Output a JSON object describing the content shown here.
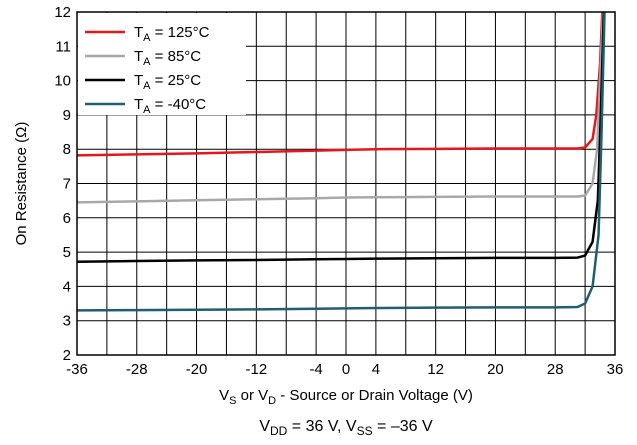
{
  "chart_data": {
    "type": "line",
    "xlabel": {
      "base": "V",
      "sub1": "S",
      "mid": " or V",
      "sub2": "D",
      "rest": " - Source or Drain Voltage (V)"
    },
    "ylabel": "On Resistance (Ω)",
    "caption": {
      "p1": "V",
      "s1": "DD",
      "p2": " = 36 V, V",
      "s2": "SS",
      "p3": " = –36 V"
    },
    "xlim": [
      -36,
      36
    ],
    "ylim": [
      2,
      12
    ],
    "xticks": [
      -36,
      -28,
      -20,
      -12,
      -4,
      0,
      4,
      12,
      20,
      28,
      36
    ],
    "xtick_labels": [
      "-36",
      "-28",
      "-20",
      "-12",
      "-4",
      "0",
      "4",
      "12",
      "20",
      "28",
      "36"
    ],
    "yticks": [
      2,
      3,
      4,
      5,
      6,
      7,
      8,
      9,
      10,
      11,
      12
    ],
    "ytick_labels": [
      "2",
      "3",
      "4",
      "5",
      "6",
      "7",
      "8",
      "9",
      "10",
      "11",
      "12"
    ],
    "grid": true,
    "legend_position": "top-left",
    "series": [
      {
        "name_prefix": "T",
        "name_sub": "A",
        "name_suffix": " = 125°C",
        "color": "#e8161a",
        "x": [
          -36,
          -28,
          -20,
          -12,
          -4,
          0,
          4,
          12,
          20,
          28,
          31,
          32,
          33,
          33.5,
          34,
          34.3
        ],
        "y": [
          7.82,
          7.85,
          7.88,
          7.92,
          7.96,
          7.98,
          8.0,
          8.01,
          8.02,
          8.02,
          8.02,
          8.05,
          8.3,
          9.0,
          10.5,
          12
        ]
      },
      {
        "name_prefix": "T",
        "name_sub": "A",
        "name_suffix": " = 85°C",
        "color": "#a8a8a8",
        "x": [
          -36,
          -28,
          -20,
          -12,
          -4,
          0,
          4,
          12,
          20,
          28,
          31,
          32,
          33,
          33.6,
          34.0,
          34.4
        ],
        "y": [
          6.45,
          6.48,
          6.51,
          6.54,
          6.57,
          6.59,
          6.6,
          6.61,
          6.62,
          6.62,
          6.62,
          6.65,
          7.0,
          8.0,
          10.0,
          12
        ]
      },
      {
        "name_prefix": "T",
        "name_sub": "A",
        "name_suffix": " = 25°C",
        "color": "#000000",
        "x": [
          -36,
          -28,
          -20,
          -12,
          -4,
          0,
          4,
          12,
          20,
          28,
          31,
          32,
          33,
          33.7,
          34.1,
          34.5
        ],
        "y": [
          4.72,
          4.74,
          4.76,
          4.77,
          4.79,
          4.8,
          4.81,
          4.82,
          4.83,
          4.83,
          4.84,
          4.9,
          5.3,
          6.5,
          9.0,
          12
        ]
      },
      {
        "name_prefix": "T",
        "name_sub": "A",
        "name_suffix": " = -40°C",
        "color": "#1f5f6f",
        "x": [
          -36,
          -28,
          -20,
          -12,
          -4,
          0,
          4,
          12,
          20,
          28,
          31,
          32,
          33,
          33.8,
          34.2,
          34.6
        ],
        "y": [
          3.3,
          3.31,
          3.32,
          3.33,
          3.35,
          3.36,
          3.37,
          3.38,
          3.39,
          3.39,
          3.4,
          3.5,
          4.0,
          5.5,
          8.5,
          12
        ]
      }
    ]
  }
}
